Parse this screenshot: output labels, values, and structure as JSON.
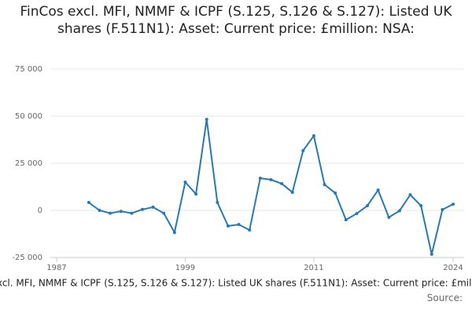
{
  "chart_data": {
    "type": "line",
    "title": "FinCos excl. MFI, NMMF & ICPF (S.125, S.126 & S.127): Listed UK shares (F.511N1): Asset: Current price: £million: NSA:",
    "source": "Source:",
    "x": [
      1990,
      1991,
      1992,
      1993,
      1994,
      1995,
      1996,
      1997,
      1998,
      1999,
      2000,
      2001,
      2002,
      2003,
      2004,
      2005,
      2006,
      2007,
      2008,
      2009,
      2010,
      2011,
      2012,
      2013,
      2014,
      2015,
      2016,
      2017,
      2018,
      2019,
      2020,
      2021,
      2022,
      2023,
      2024
    ],
    "series": [
      {
        "name": "FinCos excl. MFI, NMMF & ICPF (S.125, S.126 & S.127): Listed UK shares (F.511N1): Asset: Current price: £million: NSA",
        "color": "#2779b4",
        "values": [
          4200,
          0,
          -1500,
          -500,
          -1500,
          500,
          1700,
          -1500,
          -11700,
          15000,
          8700,
          48300,
          4200,
          -8300,
          -7500,
          -10400,
          17100,
          16300,
          14200,
          9600,
          31700,
          39600,
          13700,
          9200,
          -5000,
          -1700,
          2500,
          10800,
          -3700,
          -200,
          8300,
          2500,
          -23300,
          400,
          3300
        ]
      }
    ],
    "xlim": [
      1987,
      2024
    ],
    "xticks": [
      1987,
      1999,
      2011,
      2024
    ],
    "ylim": [
      -25000,
      75000
    ],
    "yticks": [
      {
        "value": -25000,
        "label": "-25 000"
      },
      0,
      {
        "value": 25000,
        "label": "25 000"
      },
      {
        "value": 50000,
        "label": "50 000"
      },
      {
        "value": 75000,
        "label": "75 000"
      }
    ],
    "grid": true
  }
}
